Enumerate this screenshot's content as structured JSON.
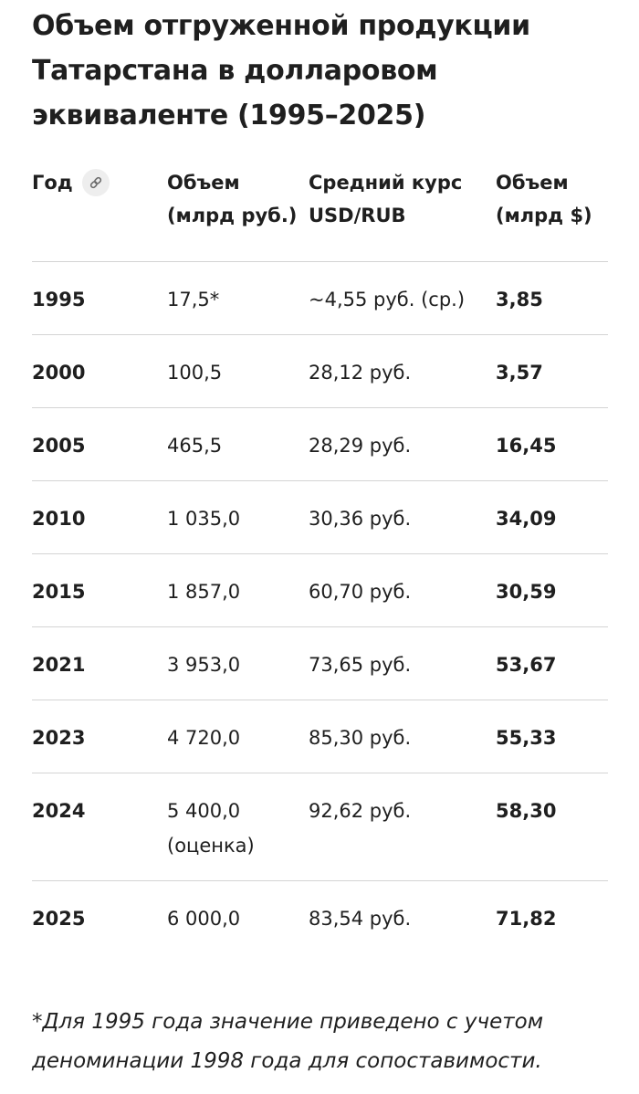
{
  "title": "Объем отгруженной продукции Татарстана в долларовом эквиваленте (1995–2025)",
  "icons": {
    "header_link": "link-icon"
  },
  "table": {
    "headers": {
      "year": "Год",
      "volume_rub": "Объем (млрд руб.)",
      "rate": "Средний курс USD/RUB",
      "volume_usd": "Объем (млрд $)"
    },
    "rows": [
      {
        "year": "1995",
        "volume_rub": "17,5*",
        "volume_rub_note": "",
        "rate": "~4,55 руб. (ср.)",
        "volume_usd": "3,85",
        "emphasis": false
      },
      {
        "year": "2000",
        "volume_rub": "100,5",
        "volume_rub_note": "",
        "rate": "28,12 руб.",
        "volume_usd": "3,57",
        "emphasis": false
      },
      {
        "year": "2005",
        "volume_rub": "465,5",
        "volume_rub_note": "",
        "rate": "28,29 руб.",
        "volume_usd": "16,45",
        "emphasis": false
      },
      {
        "year": "2010",
        "volume_rub": "1 035,0",
        "volume_rub_note": "",
        "rate": "30,36 руб.",
        "volume_usd": "34,09",
        "emphasis": false
      },
      {
        "year": "2015",
        "volume_rub": "1 857,0",
        "volume_rub_note": "",
        "rate": "60,70 руб.",
        "volume_usd": "30,59",
        "emphasis": false
      },
      {
        "year": "2021",
        "volume_rub": "3 953,0",
        "volume_rub_note": "",
        "rate": "73,65 руб.",
        "volume_usd": "53,67",
        "emphasis": false
      },
      {
        "year": "2023",
        "volume_rub": "4 720,0",
        "volume_rub_note": "",
        "rate": "85,30 руб.",
        "volume_usd": "55,33",
        "emphasis": false
      },
      {
        "year": "2024",
        "volume_rub": "5 400,0",
        "volume_rub_note": "(оценка)",
        "rate": "92,62 руб.",
        "volume_usd": "58,30",
        "emphasis": false
      },
      {
        "year": "2025",
        "volume_rub": "6 000,0",
        "volume_rub_note": "",
        "rate": "83,54 руб.",
        "volume_usd": "71,82",
        "emphasis": true
      }
    ]
  },
  "footnote": "*Для 1995 года значение приведено с учетом деноминации 1998 года для сопоставимости."
}
